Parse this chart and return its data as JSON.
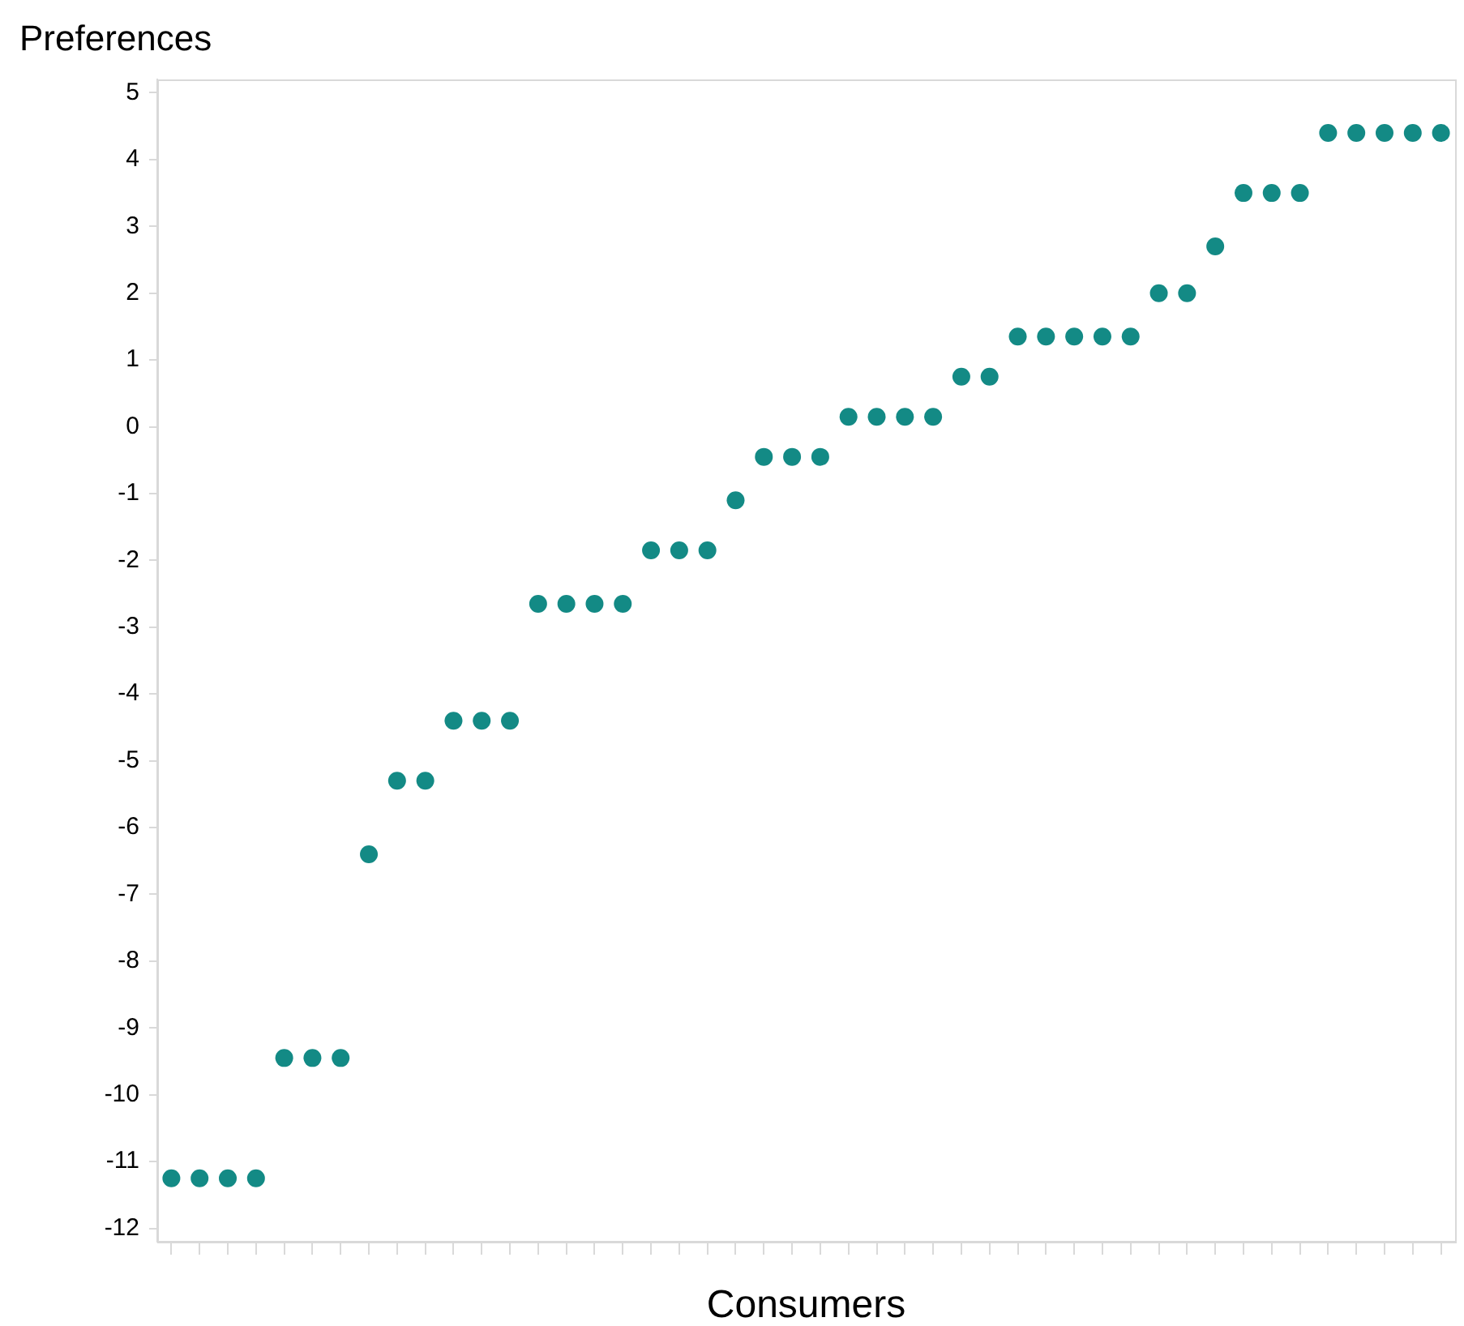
{
  "chart_data": {
    "type": "scatter",
    "ylabel": "Preferences",
    "xlabel": "Consumers",
    "categories": [
      null,
      null,
      null,
      null,
      null,
      null,
      null,
      null,
      null,
      null,
      null,
      null,
      null,
      null,
      null,
      null,
      null,
      null,
      null,
      null,
      null,
      null,
      null,
      null,
      null,
      null,
      null,
      null,
      null,
      null,
      null,
      null,
      null,
      null,
      null,
      null,
      null,
      null,
      null,
      null,
      null,
      null,
      null,
      null,
      null,
      null
    ],
    "values": [
      -11.25,
      -11.25,
      -11.25,
      -11.25,
      -9.45,
      -9.45,
      -9.45,
      -6.4,
      -5.3,
      -5.3,
      -4.4,
      -4.4,
      -4.4,
      -2.65,
      -2.65,
      -2.65,
      -2.65,
      -1.85,
      -1.85,
      -1.85,
      -1.1,
      -0.45,
      -0.45,
      -0.45,
      0.15,
      0.15,
      0.15,
      0.15,
      0.75,
      0.75,
      1.35,
      1.35,
      1.35,
      1.35,
      1.35,
      2.0,
      2.0,
      2.7,
      3.5,
      3.5,
      3.5,
      4.4,
      4.4,
      4.4,
      4.4,
      4.4
    ],
    "color": "#138a85",
    "marker": "circle",
    "grid": false,
    "legend": false,
    "tick_labels": "y",
    "ylim": [
      -12.2,
      5.2
    ],
    "yticks": [
      -12,
      -11,
      -10,
      -9,
      -8,
      -7,
      -6,
      -5,
      -4,
      -3,
      -2,
      -1,
      0,
      1,
      2,
      3,
      4,
      5
    ]
  }
}
